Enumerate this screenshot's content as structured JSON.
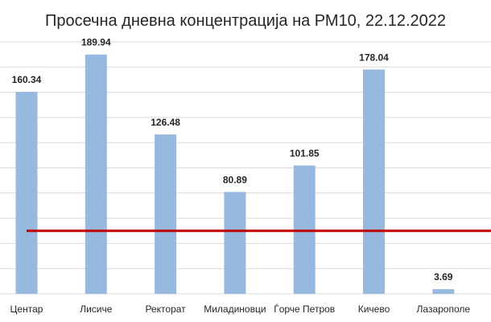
{
  "chart_data": {
    "type": "bar",
    "title": "Просечна дневна концентрација на РМ10, 22.12.2022",
    "categories": [
      "Центар",
      "Лисиче",
      "Ректорат",
      "Миладиновци",
      "Ѓорче Петров",
      "Кичево",
      "Лазарополе"
    ],
    "values": [
      160.34,
      189.94,
      126.48,
      80.89,
      101.85,
      178.04,
      3.69
    ],
    "value_labels": [
      "160.34",
      "189.94",
      "126.48",
      "80.89",
      "101.85",
      "178.04",
      "3.69"
    ],
    "ylim": [
      0,
      200
    ],
    "grid": true,
    "reference_line": {
      "value": 50,
      "color": "#c00000"
    },
    "colors": {
      "bar": "#97b9e0",
      "grid": "#d9d9d9",
      "text": "#262626"
    }
  }
}
